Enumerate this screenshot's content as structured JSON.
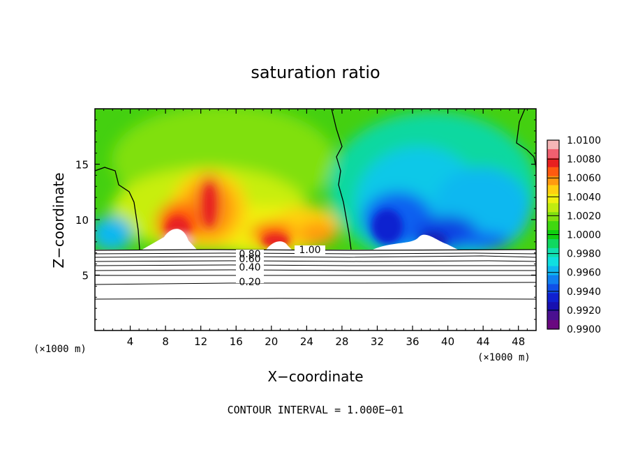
{
  "chart_data": {
    "type": "heatmap",
    "title": "saturation ratio",
    "xlabel": "X−coordinate",
    "ylabel": "Z−coordinate",
    "x_unit_label_left": "(×1000 m)",
    "x_unit_label_right": "(×1000 m)",
    "xlim": [
      0,
      50
    ],
    "ylim": [
      0,
      20
    ],
    "x_ticks": [
      4,
      8,
      12,
      16,
      20,
      24,
      28,
      32,
      36,
      40,
      44,
      48
    ],
    "x_tick_labels": [
      "4",
      "8",
      "12",
      "16",
      "20",
      "24",
      "28",
      "32",
      "36",
      "40",
      "44",
      "48"
    ],
    "y_ticks": [
      5,
      10,
      15
    ],
    "y_tick_labels": [
      "5",
      "10",
      "15"
    ],
    "colorbar_levels": [
      "1.0100",
      "1.0080",
      "1.0060",
      "1.0040",
      "1.0020",
      "1.0000",
      "0.9980",
      "0.9960",
      "0.9940",
      "0.9920",
      "0.9900"
    ],
    "colorbar_colors": [
      "#f4b6b6",
      "#f06070",
      "#e82020",
      "#ff5a10",
      "#ff9a10",
      "#ffd010",
      "#f0f010",
      "#c0ec10",
      "#80e010",
      "#40d810",
      "#10d010",
      "#10d860",
      "#10e0b0",
      "#10e0e0",
      "#10b8f0",
      "#1080f0",
      "#1050e8",
      "#1020d0",
      "#1810b0",
      "#4a1090",
      "#6a0880"
    ],
    "contour_labels": [
      "1.00",
      "0.80",
      "0.60",
      "0.40",
      "0.20"
    ],
    "contour_levels": [
      0.2,
      0.4,
      0.6,
      0.8,
      1.0
    ],
    "contour_interval_text": "CONTOUR INTERVAL = 1.000E−01",
    "grid": false
  }
}
